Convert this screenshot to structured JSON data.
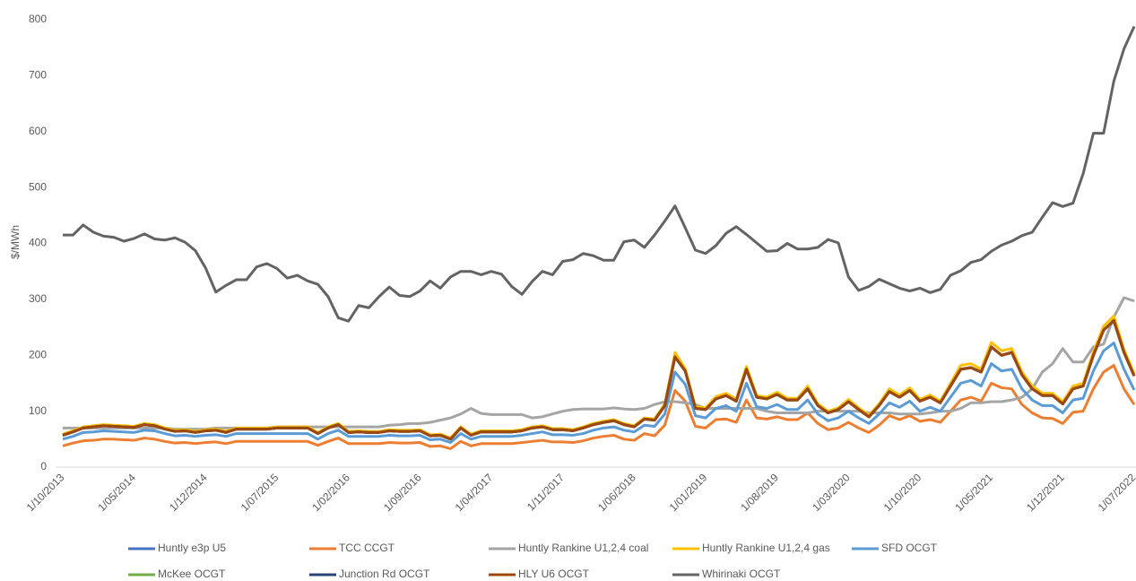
{
  "chart_data": {
    "type": "line",
    "y_label": "$/MWh",
    "categories": [
      "1/10/2013",
      null,
      null,
      null,
      null,
      null,
      null,
      "1/05/2014",
      null,
      null,
      null,
      null,
      null,
      null,
      "1/12/2014",
      null,
      null,
      null,
      null,
      null,
      null,
      "1/07/2015",
      null,
      null,
      null,
      null,
      null,
      null,
      "1/02/2016",
      null,
      null,
      null,
      null,
      null,
      null,
      "1/09/2016",
      null,
      null,
      null,
      null,
      null,
      null,
      "1/04/2017",
      null,
      null,
      null,
      null,
      null,
      null,
      "1/11/2017",
      null,
      null,
      null,
      null,
      null,
      null,
      "1/06/2018",
      null,
      null,
      null,
      null,
      null,
      null,
      "1/01/2019",
      null,
      null,
      null,
      null,
      null,
      null,
      "1/08/2019",
      null,
      null,
      null,
      null,
      null,
      null,
      "1/03/2020",
      null,
      null,
      null,
      null,
      null,
      null,
      "1/10/2020",
      null,
      null,
      null,
      null,
      null,
      null,
      "1/05/2021",
      null,
      null,
      null,
      null,
      null,
      null,
      "1/12/2021",
      null,
      null,
      null,
      null,
      null,
      null,
      "1/07/2022"
    ],
    "ylim": [
      0,
      800
    ],
    "yticks": [
      0,
      100,
      200,
      300,
      400,
      500,
      600,
      700,
      800
    ],
    "legend": "bottom",
    "series": [
      {
        "name": "Huntly e3p U5",
        "color": "#4472c4",
        "values": [
          57,
          63,
          70,
          72,
          74,
          73,
          72,
          71,
          76,
          74,
          68,
          64,
          65,
          62,
          65,
          66,
          62,
          68,
          68,
          68,
          68,
          70,
          70,
          70,
          70,
          60,
          70,
          76,
          62,
          63,
          62,
          62,
          65,
          64,
          64,
          65,
          56,
          57,
          50,
          70,
          57,
          63,
          63,
          63,
          63,
          65,
          70,
          72,
          67,
          67,
          65,
          70,
          76,
          80,
          83,
          76,
          72,
          86,
          84,
          110,
          197,
          172,
          105,
          103,
          122,
          128,
          118,
          175,
          125,
          122,
          130,
          120,
          120,
          140,
          110,
          97,
          103,
          117,
          103,
          90,
          110,
          135,
          125,
          137,
          118,
          125,
          115,
          145,
          175,
          178,
          170,
          215,
          200,
          205,
          165,
          140,
          128,
          128,
          113,
          140,
          145,
          200,
          245,
          262,
          205,
          163
        ]
      },
      {
        "name": "TCC CCGT",
        "color": "#ed7d31",
        "values": [
          38,
          43,
          47,
          48,
          50,
          50,
          49,
          48,
          52,
          50,
          46,
          43,
          44,
          42,
          44,
          45,
          42,
          46,
          46,
          46,
          46,
          46,
          46,
          46,
          46,
          39,
          46,
          52,
          42,
          42,
          42,
          42,
          44,
          43,
          43,
          44,
          37,
          38,
          33,
          46,
          38,
          42,
          42,
          42,
          42,
          44,
          46,
          48,
          45,
          45,
          44,
          47,
          52,
          55,
          57,
          50,
          48,
          60,
          56,
          75,
          137,
          118,
          73,
          70,
          85,
          86,
          80,
          120,
          88,
          86,
          90,
          85,
          85,
          97,
          78,
          67,
          70,
          80,
          70,
          62,
          75,
          92,
          85,
          92,
          82,
          85,
          80,
          100,
          120,
          125,
          118,
          150,
          142,
          140,
          112,
          97,
          88,
          87,
          78,
          98,
          100,
          140,
          170,
          182,
          140,
          112
        ]
      },
      {
        "name": "Huntly Rankine U1,2,4 coal",
        "color": "#a5a5a5",
        "values": [
          70,
          70,
          70,
          70,
          70,
          70,
          70,
          70,
          70,
          70,
          70,
          68,
          68,
          68,
          68,
          70,
          70,
          70,
          70,
          70,
          70,
          72,
          72,
          72,
          72,
          72,
          72,
          72,
          72,
          72,
          72,
          72,
          75,
          76,
          78,
          78,
          80,
          84,
          88,
          95,
          105,
          96,
          94,
          94,
          94,
          94,
          88,
          90,
          95,
          100,
          103,
          104,
          104,
          104,
          106,
          104,
          103,
          105,
          112,
          117,
          117,
          115,
          112,
          105,
          105,
          105,
          105,
          105,
          105,
          100,
          97,
          97,
          97,
          97,
          100,
          100,
          100,
          100,
          100,
          97,
          97,
          97,
          95,
          95,
          95,
          97,
          100,
          100,
          105,
          115,
          115,
          117,
          117,
          120,
          125,
          140,
          170,
          185,
          212,
          188,
          188,
          215,
          220,
          268,
          303,
          297
        ]
      },
      {
        "name": "Huntly Rankine U1,2,4 gas",
        "color": "#ffc000",
        "values": [
          59,
          65,
          72,
          74,
          76,
          75,
          74,
          73,
          78,
          76,
          70,
          66,
          67,
          64,
          67,
          68,
          64,
          70,
          70,
          70,
          70,
          72,
          72,
          72,
          72,
          62,
          72,
          78,
          64,
          65,
          64,
          64,
          67,
          66,
          66,
          67,
          58,
          59,
          52,
          72,
          59,
          65,
          65,
          65,
          65,
          67,
          72,
          74,
          69,
          69,
          67,
          72,
          78,
          82,
          85,
          78,
          74,
          88,
          86,
          113,
          205,
          176,
          108,
          106,
          126,
          132,
          122,
          180,
          128,
          125,
          134,
          123,
          123,
          145,
          113,
          100,
          106,
          121,
          106,
          93,
          113,
          140,
          129,
          142,
          121,
          129,
          118,
          150,
          182,
          185,
          175,
          223,
          208,
          212,
          170,
          145,
          132,
          132,
          117,
          145,
          150,
          206,
          252,
          270,
          210,
          167
        ]
      },
      {
        "name": "SFD OCGT",
        "color": "#5b9bd5",
        "values": [
          50,
          55,
          62,
          63,
          65,
          64,
          63,
          62,
          66,
          65,
          60,
          56,
          57,
          55,
          57,
          58,
          55,
          60,
          60,
          60,
          60,
          60,
          60,
          60,
          60,
          50,
          60,
          66,
          55,
          55,
          55,
          55,
          57,
          56,
          56,
          57,
          49,
          50,
          44,
          60,
          50,
          55,
          55,
          55,
          55,
          57,
          60,
          63,
          58,
          58,
          57,
          60,
          66,
          70,
          72,
          66,
          63,
          75,
          73,
          95,
          170,
          148,
          92,
          88,
          105,
          110,
          100,
          150,
          108,
          105,
          112,
          103,
          103,
          120,
          95,
          83,
          88,
          100,
          88,
          78,
          95,
          115,
          107,
          118,
          100,
          107,
          100,
          125,
          150,
          155,
          145,
          185,
          172,
          175,
          140,
          120,
          110,
          110,
          97,
          120,
          123,
          172,
          208,
          222,
          175,
          138
        ]
      },
      {
        "name": "McKee OCGT",
        "color": "#70ad47",
        "values": [
          57,
          63,
          70,
          72,
          74,
          73,
          72,
          71,
          76,
          74,
          68,
          64,
          65,
          62,
          65,
          66,
          62,
          68,
          68,
          68,
          68,
          70,
          70,
          70,
          70,
          60,
          70,
          76,
          62,
          63,
          62,
          62,
          65,
          64,
          64,
          65,
          56,
          57,
          50,
          70,
          57,
          63,
          63,
          63,
          63,
          65,
          70,
          72,
          67,
          67,
          65,
          70,
          76,
          80,
          83,
          76,
          72,
          86,
          84,
          110,
          197,
          172,
          105,
          103,
          122,
          128,
          118,
          175,
          125,
          122,
          130,
          120,
          120,
          140,
          110,
          97,
          103,
          117,
          103,
          90,
          110,
          135,
          125,
          137,
          118,
          125,
          115,
          145,
          175,
          178,
          170,
          215,
          200,
          205,
          165,
          140,
          128,
          128,
          113,
          140,
          145,
          200,
          245,
          262,
          205,
          163
        ]
      },
      {
        "name": "Junction Rd OCGT",
        "color": "#264478",
        "values": [
          57,
          63,
          70,
          72,
          74,
          73,
          72,
          71,
          76,
          74,
          68,
          64,
          65,
          62,
          65,
          66,
          62,
          68,
          68,
          68,
          68,
          70,
          70,
          70,
          70,
          60,
          70,
          76,
          62,
          63,
          62,
          62,
          65,
          64,
          64,
          65,
          56,
          57,
          50,
          70,
          57,
          63,
          63,
          63,
          63,
          65,
          70,
          72,
          67,
          67,
          65,
          70,
          76,
          80,
          83,
          76,
          72,
          86,
          84,
          110,
          197,
          172,
          105,
          103,
          122,
          128,
          118,
          175,
          125,
          122,
          130,
          120,
          120,
          140,
          110,
          97,
          103,
          117,
          103,
          90,
          110,
          135,
          125,
          137,
          118,
          125,
          115,
          145,
          175,
          178,
          170,
          215,
          200,
          205,
          165,
          140,
          128,
          128,
          113,
          140,
          145,
          200,
          245,
          262,
          205,
          163
        ]
      },
      {
        "name": "HLY U6 OCGT",
        "color": "#9e480e",
        "values": [
          57,
          63,
          70,
          72,
          74,
          73,
          72,
          71,
          76,
          74,
          68,
          64,
          65,
          62,
          65,
          66,
          62,
          68,
          68,
          68,
          68,
          70,
          70,
          70,
          70,
          60,
          70,
          76,
          62,
          63,
          62,
          62,
          65,
          64,
          64,
          65,
          56,
          57,
          50,
          70,
          57,
          63,
          63,
          63,
          63,
          65,
          70,
          72,
          67,
          67,
          65,
          70,
          76,
          80,
          83,
          76,
          72,
          86,
          84,
          110,
          197,
          172,
          105,
          103,
          122,
          128,
          118,
          175,
          125,
          122,
          130,
          120,
          120,
          140,
          110,
          97,
          103,
          117,
          103,
          90,
          110,
          135,
          125,
          137,
          118,
          125,
          115,
          145,
          175,
          178,
          170,
          215,
          200,
          205,
          165,
          140,
          128,
          128,
          113,
          140,
          145,
          200,
          245,
          262,
          205,
          163
        ]
      },
      {
        "name": "Whirinaki OCGT",
        "color": "#636363",
        "values": [
          415,
          415,
          433,
          420,
          413,
          411,
          404,
          409,
          417,
          408,
          406,
          410,
          402,
          387,
          356,
          313,
          325,
          335,
          335,
          358,
          364,
          355,
          338,
          343,
          333,
          327,
          305,
          267,
          261,
          289,
          285,
          305,
          322,
          307,
          305,
          315,
          333,
          320,
          340,
          350,
          350,
          344,
          350,
          345,
          323,
          309,
          332,
          350,
          344,
          368,
          371,
          382,
          378,
          370,
          370,
          403,
          406,
          393,
          415,
          440,
          467,
          428,
          388,
          382,
          396,
          418,
          430,
          416,
          401,
          386,
          387,
          400,
          390,
          390,
          393,
          407,
          401,
          340,
          316,
          323,
          336,
          328,
          320,
          315,
          320,
          312,
          318,
          343,
          351,
          366,
          371,
          386,
          397,
          404,
          414,
          420,
          447,
          473,
          466,
          472,
          525,
          597,
          597,
          690,
          748,
          788
        ]
      }
    ]
  }
}
